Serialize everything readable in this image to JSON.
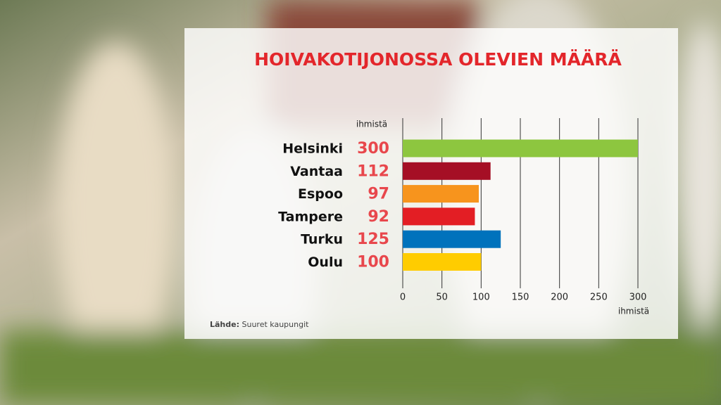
{
  "chart_data": {
    "type": "bar",
    "orientation": "horizontal",
    "title": "HOIVAKOTIJONOSSA OLEVIEN MÄÄRÄ",
    "unit_label": "ihmistä",
    "xlabel": "ihmistä",
    "categories": [
      "Helsinki",
      "Vantaa",
      "Espoo",
      "Tampere",
      "Turku",
      "Oulu"
    ],
    "values": [
      300,
      112,
      97,
      92,
      125,
      100
    ],
    "colors": [
      "#8dc63f",
      "#a50f25",
      "#f7941d",
      "#e31e24",
      "#0072bc",
      "#ffcc00"
    ],
    "value_label_color": "#e8474c",
    "xlim": [
      0,
      300
    ],
    "xticks": [
      0,
      50,
      100,
      150,
      200,
      250,
      300
    ],
    "grid": true,
    "source_label": "Lähde:",
    "source": "Suuret kaupungit"
  }
}
